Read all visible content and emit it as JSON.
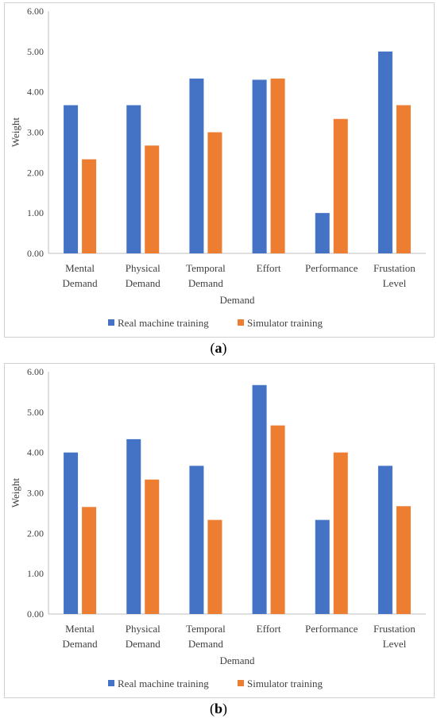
{
  "chart_data": [
    {
      "type": "bar",
      "panel_label": "a",
      "xlabel": "Demand",
      "ylabel": "Weight",
      "ylim": [
        0,
        6
      ],
      "yticks": [
        "0.00",
        "1.00",
        "2.00",
        "3.00",
        "4.00",
        "5.00",
        "6.00"
      ],
      "categories": [
        [
          "Mental",
          "Demand"
        ],
        [
          "Physical",
          "Demand"
        ],
        [
          "Temporal",
          "Demand"
        ],
        [
          "Effort"
        ],
        [
          "Performance"
        ],
        [
          "Frustation",
          "Level"
        ]
      ],
      "series": [
        {
          "name": "Real machine training",
          "color": "#4472c4",
          "values": [
            3.67,
            3.67,
            4.33,
            4.3,
            1.0,
            5.0
          ]
        },
        {
          "name": "Simulator training",
          "color": "#ed7d31",
          "values": [
            2.33,
            2.67,
            3.0,
            4.33,
            3.33,
            3.67
          ]
        }
      ],
      "legend": "bottom",
      "grid": false
    },
    {
      "type": "bar",
      "panel_label": "b",
      "xlabel": "Demand",
      "ylabel": "Weight",
      "ylim": [
        0,
        6
      ],
      "yticks": [
        "0.00",
        "1.00",
        "2.00",
        "3.00",
        "4.00",
        "5.00",
        "6.00"
      ],
      "categories": [
        [
          "Mental",
          "Demand"
        ],
        [
          "Physical",
          "Demand"
        ],
        [
          "Temporal",
          "Demand"
        ],
        [
          "Effort"
        ],
        [
          "Performance"
        ],
        [
          "Frustation",
          "Level"
        ]
      ],
      "series": [
        {
          "name": "Real machine training",
          "color": "#4472c4",
          "values": [
            4.0,
            4.33,
            3.67,
            5.67,
            2.33,
            3.67
          ]
        },
        {
          "name": "Simulator training",
          "color": "#ed7d31",
          "values": [
            2.65,
            3.33,
            2.33,
            4.67,
            4.0,
            2.67
          ]
        }
      ],
      "legend": "bottom",
      "grid": false
    }
  ],
  "captions": {
    "a": "a",
    "b": "b"
  }
}
